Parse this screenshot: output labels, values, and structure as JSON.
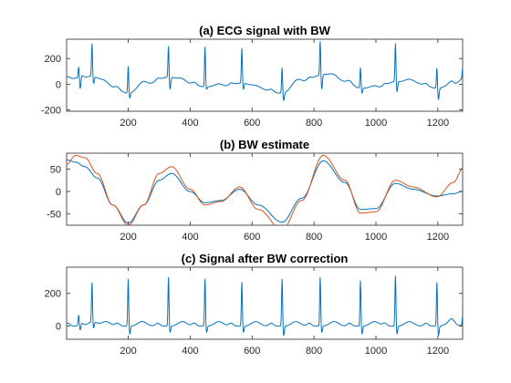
{
  "chart_data": [
    {
      "type": "line",
      "title": "(a) ECG signal with BW",
      "xlim": [
        1,
        1280
      ],
      "ylim": [
        -210,
        350
      ],
      "xticks": [
        200,
        400,
        600,
        800,
        1000,
        1200
      ],
      "yticks": [
        -200,
        0,
        200
      ],
      "series": [
        {
          "color": "#0072bd",
          "kind": "ecg_plus_baseline",
          "r_peak_x": [
            40,
            83,
            200,
            330,
            448,
            567,
            697,
            820,
            950,
            1063,
            1197,
            1280
          ],
          "r_peak_y": [
            130,
            290,
            140,
            300,
            290,
            280,
            130,
            340,
            130,
            320,
            130,
            130
          ],
          "s_trough_y": [
            -50,
            -20,
            -110,
            -40,
            -40,
            -40,
            -130,
            -40,
            -70,
            -60,
            -120,
            -50
          ],
          "baseline_x": [
            1,
            50,
            100,
            150,
            200,
            260,
            330,
            400,
            448,
            500,
            567,
            620,
            697,
            760,
            830,
            900,
            950,
            1000,
            1063,
            1120,
            1197,
            1250,
            1280
          ],
          "baseline_y": [
            40,
            50,
            30,
            -30,
            -70,
            0,
            55,
            0,
            -20,
            -25,
            10,
            -40,
            -70,
            20,
            75,
            20,
            -30,
            -40,
            20,
            10,
            -30,
            -20,
            40
          ]
        }
      ]
    },
    {
      "type": "line",
      "title": "(b) BW estimate",
      "xlim": [
        1,
        1280
      ],
      "ylim": [
        -75,
        85
      ],
      "xticks": [
        200,
        400,
        600,
        800,
        1000,
        1200
      ],
      "yticks": [
        -50,
        0,
        50
      ],
      "series": [
        {
          "color": "#0072bd",
          "x": [
            1,
            30,
            60,
            100,
            150,
            200,
            250,
            300,
            340,
            400,
            448,
            500,
            560,
            620,
            697,
            760,
            830,
            900,
            950,
            1000,
            1063,
            1120,
            1197,
            1250,
            1280
          ],
          "y": [
            70,
            65,
            55,
            30,
            -30,
            -70,
            -30,
            25,
            40,
            0,
            -25,
            -20,
            5,
            -30,
            -68,
            -15,
            68,
            20,
            -40,
            -38,
            18,
            5,
            -10,
            -5,
            0
          ]
        },
        {
          "color": "#d95319",
          "x": [
            1,
            30,
            60,
            100,
            150,
            200,
            250,
            300,
            340,
            400,
            448,
            500,
            560,
            620,
            697,
            760,
            830,
            900,
            950,
            1000,
            1063,
            1120,
            1197,
            1250,
            1280
          ],
          "y": [
            60,
            80,
            75,
            40,
            -30,
            -75,
            -30,
            40,
            55,
            5,
            -30,
            -22,
            10,
            -40,
            -85,
            -20,
            80,
            25,
            -48,
            -45,
            25,
            10,
            -12,
            20,
            50
          ]
        }
      ]
    },
    {
      "type": "line",
      "title": "(c) Signal after BW correction",
      "xlim": [
        1,
        1280
      ],
      "ylim": [
        -80,
        360
      ],
      "xticks": [
        200,
        400,
        600,
        800,
        1000,
        1200
      ],
      "yticks": [
        0,
        200
      ],
      "series": [
        {
          "color": "#0072bd",
          "kind": "ecg_plus_baseline",
          "r_peak_x": [
            40,
            83,
            200,
            330,
            448,
            567,
            697,
            820,
            950,
            1063,
            1197,
            1280
          ],
          "r_peak_y": [
            60,
            240,
            290,
            300,
            290,
            270,
            290,
            300,
            280,
            310,
            270,
            60
          ],
          "s_trough_y": [
            -40,
            -40,
            -50,
            -40,
            -40,
            -40,
            -60,
            -40,
            -50,
            -50,
            -60,
            -30
          ],
          "baseline_x": [
            1,
            1280
          ],
          "baseline_y": [
            0,
            0
          ]
        }
      ]
    }
  ]
}
